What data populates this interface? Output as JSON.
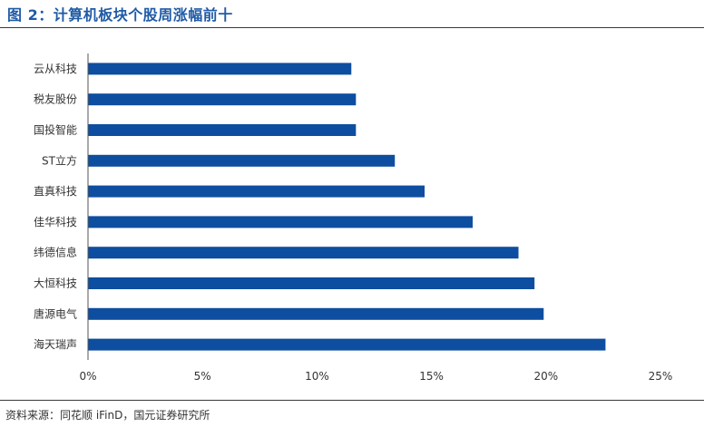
{
  "figure": {
    "title": "图 2：计算机板块个股周涨幅前十",
    "source": "资料来源：同花顺 iFinD，国元证券研究所"
  },
  "chart_data": {
    "type": "bar",
    "orientation": "horizontal",
    "categories": [
      "云从科技",
      "税友股份",
      "国投智能",
      "ST立方",
      "直真科技",
      "佳华科技",
      "纬德信息",
      "大恒科技",
      "唐源电气",
      "海天瑞声"
    ],
    "values": [
      11.5,
      11.7,
      11.7,
      13.4,
      14.7,
      16.8,
      18.8,
      19.5,
      19.9,
      22.6
    ],
    "xlim": [
      0,
      25
    ],
    "ticks": [
      0,
      5,
      10,
      15,
      20,
      25
    ],
    "tick_labels": [
      "0%",
      "5%",
      "10%",
      "15%",
      "20%",
      "25%"
    ],
    "bar_color": "#0d4ea0",
    "grid": false,
    "legend": "none"
  }
}
